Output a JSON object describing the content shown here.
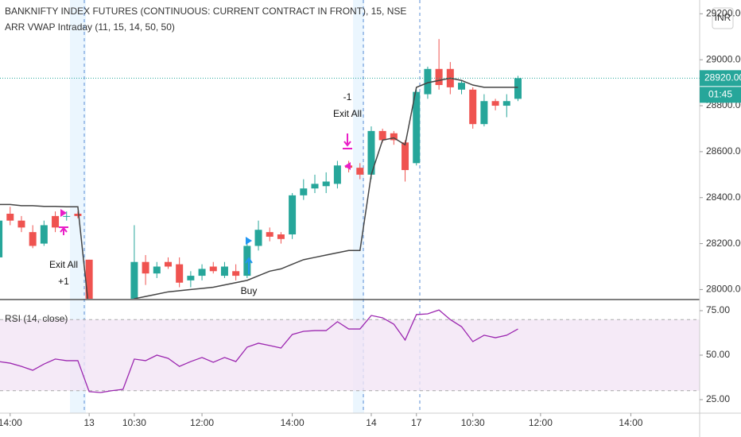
{
  "chart_data": [
    {
      "type": "candlestick",
      "title": "BANKNIFTY INDEX FUTURES (CONTINUOUS: CURRENT CONTRACT IN FRONT), 15, NSE",
      "subtitle": "ARR VWAP Intraday (11, 15, 14, 50, 50)",
      "open": [
        28140,
        28330,
        28300,
        28250,
        28200,
        28320,
        28320,
        28330,
        28130,
        27880,
        27850,
        27870,
        27900,
        28120,
        28070,
        28120,
        28110,
        28040,
        28060,
        28100,
        28060,
        28080,
        28060,
        28190,
        28250,
        28240,
        28240,
        28410,
        28440,
        28450,
        28460,
        28540,
        28530,
        28500,
        28690,
        28680,
        28640,
        28550,
        28850,
        28960,
        28960,
        28870,
        28870,
        28720,
        28820,
        28800,
        28830
      ],
      "high": [
        28330,
        28360,
        28320,
        28280,
        28300,
        28340,
        28340,
        28340,
        28130,
        27920,
        27900,
        27920,
        28280,
        28150,
        28120,
        28140,
        28140,
        28080,
        28110,
        28120,
        28120,
        28110,
        28200,
        28300,
        28270,
        28250,
        28420,
        28480,
        28500,
        28510,
        28560,
        28560,
        28550,
        28710,
        28700,
        28690,
        28650,
        28870,
        28970,
        29090,
        28990,
        28910,
        28880,
        28850,
        28830,
        28850,
        28930
      ],
      "low": [
        28100,
        28280,
        28250,
        28180,
        28190,
        28250,
        28300,
        28310,
        27880,
        27800,
        27820,
        27840,
        27890,
        28020,
        28050,
        28090,
        28010,
        28010,
        28040,
        28070,
        28050,
        28040,
        28050,
        28170,
        28210,
        28200,
        28220,
        28390,
        28420,
        28420,
        28440,
        28510,
        28480,
        28480,
        28640,
        28630,
        28470,
        28540,
        28830,
        28870,
        28850,
        28850,
        28700,
        28710,
        28780,
        28750,
        28820
      ],
      "close": [
        28300,
        28300,
        28270,
        28190,
        28280,
        28270,
        28320,
        28320,
        27880,
        27850,
        27870,
        27900,
        28120,
        28070,
        28100,
        28100,
        28030,
        28060,
        28090,
        28080,
        28100,
        28060,
        28190,
        28260,
        28230,
        28220,
        28410,
        28440,
        28460,
        28470,
        28540,
        28530,
        28500,
        28690,
        28650,
        28650,
        28520,
        28860,
        28960,
        28890,
        28880,
        28900,
        28720,
        28820,
        28800,
        28820,
        28920
      ],
      "up_color": "#26a69a",
      "down_color": "#ef5350",
      "overlay": {
        "color": "#444444",
        "values": [
          28370,
          28370,
          28365,
          28365,
          28362,
          28362,
          28360,
          28360,
          27900,
          27880,
          27870,
          27880,
          27960,
          27970,
          27980,
          27990,
          27995,
          28000,
          28005,
          28010,
          28020,
          28030,
          28040,
          28060,
          28080,
          28090,
          28110,
          28130,
          28140,
          28150,
          28160,
          28170,
          28170,
          28500,
          28650,
          28660,
          28630,
          28880,
          28900,
          28910,
          28920,
          28910,
          28890,
          28880,
          28880,
          28880,
          28880
        ]
      },
      "ylim": [
        27960,
        29260
      ],
      "yticks": [
        {
          "value": 28000,
          "label": "28000.00"
        },
        {
          "value": 28200,
          "label": "28200.00"
        },
        {
          "value": 28400,
          "label": "28400.00"
        },
        {
          "value": 28600,
          "label": "28600.00"
        },
        {
          "value": 28800,
          "label": "28800.00"
        },
        {
          "value": 29000,
          "label": "29000.00"
        },
        {
          "value": 29200,
          "label": "29200.00"
        }
      ],
      "price_label": {
        "value": 28920,
        "label": "28920.00"
      },
      "countdown": "01:45",
      "currency": "INR",
      "annotations": [
        "Exit All",
        "+1",
        "-1",
        "Exit All",
        "Buy"
      ]
    },
    {
      "type": "line",
      "title": "RSI (14, close)",
      "color": "#9c27b0",
      "values": [
        46.4,
        45.5,
        43.7,
        41.5,
        45,
        47.8,
        46.9,
        46.9,
        29.5,
        29,
        30,
        30.8,
        47.8,
        46.9,
        50,
        48.2,
        43.7,
        46.4,
        48.7,
        46,
        48.7,
        46.4,
        54.5,
        56.7,
        55.4,
        54,
        61.6,
        63.4,
        63.8,
        63.8,
        68.8,
        64.7,
        64.7,
        72.3,
        71,
        67.4,
        58.5,
        72.8,
        73.2,
        75.4,
        70,
        66,
        57.6,
        61.2,
        59.8,
        61.2,
        64.7
      ],
      "band": [
        30,
        70
      ],
      "ylim": [
        17.4,
        80.8
      ],
      "yticks": [
        {
          "value": 25,
          "label": "25.00"
        },
        {
          "value": 50,
          "label": "50.00"
        },
        {
          "value": 75,
          "label": "75.00"
        }
      ],
      "xlim": [
        0.1,
        62.1
      ],
      "xticks": [
        {
          "value": 1,
          "label": "14:00"
        },
        {
          "value": 8,
          "label": "13"
        },
        {
          "value": 12,
          "label": "10:30"
        },
        {
          "value": 18,
          "label": "12:00"
        },
        {
          "value": 26,
          "label": "14:00"
        },
        {
          "value": 33,
          "label": "14"
        },
        {
          "value": 37,
          "label": "17"
        },
        {
          "value": 42,
          "label": "10:30"
        },
        {
          "value": 48,
          "label": "12:00"
        },
        {
          "value": 56,
          "label": "14:00"
        }
      ]
    }
  ]
}
